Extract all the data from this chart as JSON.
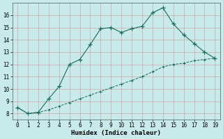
{
  "xlabel": "Humidex (Indice chaleur)",
  "ylabel": "",
  "bg_color": "#c8eaea",
  "grid_color_major": "#b8c8c8",
  "grid_color_minor": "#d8e8e8",
  "line_color": "#1a6b5a",
  "x_main": [
    0,
    1,
    2,
    3,
    4,
    5,
    6,
    7,
    8,
    9,
    10,
    11,
    12,
    13,
    14,
    15,
    16,
    17,
    18,
    19
  ],
  "y_main": [
    8.5,
    8.0,
    8.1,
    9.2,
    10.2,
    12.0,
    12.4,
    13.6,
    14.9,
    15.0,
    14.6,
    14.9,
    15.1,
    16.2,
    16.6,
    15.3,
    14.4,
    13.7,
    13.0,
    12.5
  ],
  "x_lower": [
    0,
    1,
    2,
    3,
    4,
    5,
    6,
    7,
    8,
    9,
    10,
    11,
    12,
    13,
    14,
    15,
    16,
    17,
    18,
    19
  ],
  "y_lower": [
    8.5,
    8.0,
    8.1,
    8.3,
    8.6,
    8.9,
    9.2,
    9.5,
    9.8,
    10.1,
    10.4,
    10.7,
    11.0,
    11.4,
    11.8,
    12.0,
    12.1,
    12.3,
    12.4,
    12.5
  ],
  "xlim": [
    -0.5,
    19.5
  ],
  "ylim": [
    7.5,
    17.0
  ],
  "yticks": [
    8,
    9,
    10,
    11,
    12,
    13,
    14,
    15,
    16
  ],
  "xticks": [
    0,
    1,
    2,
    3,
    4,
    5,
    6,
    7,
    8,
    9,
    10,
    11,
    12,
    13,
    14,
    15,
    16,
    17,
    18,
    19
  ],
  "tick_fontsize": 5.5,
  "label_fontsize": 6.5
}
